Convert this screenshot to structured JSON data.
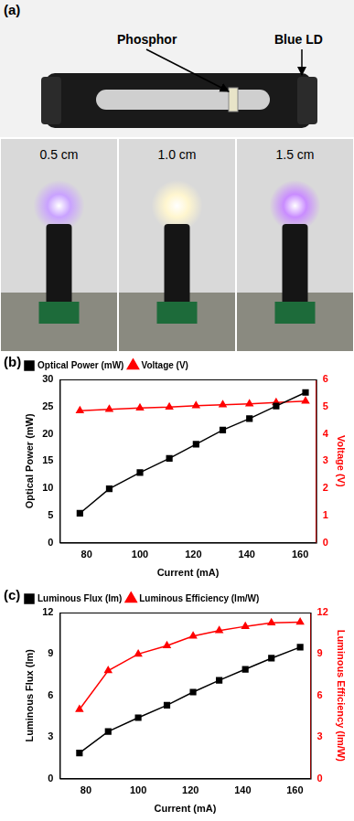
{
  "photo": {
    "panel_label": "(a)",
    "labels": {
      "phosphor": "Phosphor",
      "laser": "Blue LD"
    },
    "distances": [
      "0.5 cm",
      "1.0 cm",
      "1.5 cm"
    ]
  },
  "chart_data": [
    {
      "panel_label": "(b)",
      "type": "line",
      "x_label": "Current (mA)",
      "y_label": "Optical Power (mW)",
      "y2_label": "Voltage (V)",
      "x": [
        77.5,
        88.5,
        100,
        111,
        121,
        131,
        141,
        151,
        162
      ],
      "xlim": [
        70,
        166
      ],
      "xticks": [
        80,
        100,
        120,
        140,
        160
      ],
      "ylim": [
        0,
        30
      ],
      "yticks": [
        0,
        5,
        10,
        15,
        20,
        25,
        30
      ],
      "y2lim": [
        0,
        6
      ],
      "y2ticks": [
        0,
        1,
        2,
        3,
        4,
        5,
        6
      ],
      "grid": false,
      "legend": "upper left",
      "series": [
        {
          "name": "Optical Power (mW)",
          "color": "#000000",
          "marker": "square",
          "values": [
            5.4,
            9.9,
            12.9,
            15.5,
            18.1,
            20.7,
            22.8,
            25.1,
            27.6
          ]
        },
        {
          "name": "Voltage (V)",
          "color": "#ff0000",
          "marker": "triangle",
          "axis": "y2",
          "values": [
            4.85,
            4.9,
            4.95,
            4.98,
            5.03,
            5.07,
            5.1,
            5.15,
            5.2
          ]
        }
      ]
    },
    {
      "panel_label": "(c)",
      "type": "line",
      "x_label": "Current (mA)",
      "y_label": "Luminous Flux (lm)",
      "y2_label": "Luminous Efficiency (lm/W)",
      "x": [
        77.5,
        88.5,
        100,
        111,
        121,
        131,
        141,
        151,
        162
      ],
      "xlim": [
        70,
        166
      ],
      "xticks": [
        80,
        100,
        120,
        140,
        160
      ],
      "ylim": [
        0,
        12
      ],
      "yticks": [
        0,
        3,
        6,
        9,
        12
      ],
      "y2lim": [
        0,
        12
      ],
      "y2ticks": [
        0,
        3,
        6,
        9,
        12
      ],
      "grid": false,
      "legend": "upper left",
      "series": [
        {
          "name": "Luminous Flux (lm)",
          "color": "#000000",
          "marker": "square",
          "values": [
            1.85,
            3.4,
            4.4,
            5.3,
            6.25,
            7.1,
            7.9,
            8.7,
            9.5
          ]
        },
        {
          "name": "Luminous Efficiency (lm/W)",
          "color": "#ff0000",
          "marker": "triangle",
          "axis": "y2",
          "values": [
            5.0,
            7.8,
            9.0,
            9.6,
            10.3,
            10.7,
            11.0,
            11.25,
            11.3
          ]
        }
      ]
    }
  ]
}
